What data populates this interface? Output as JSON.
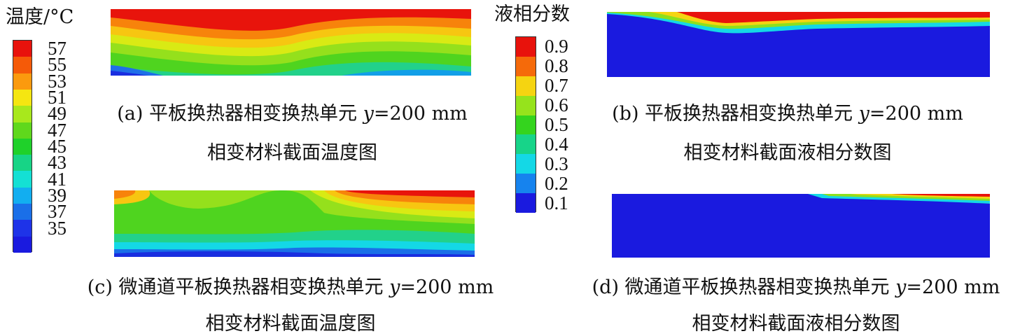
{
  "temperature_legend": {
    "title": "温度/°C",
    "ticks": [
      "57",
      "55",
      "53",
      "51",
      "49",
      "47",
      "45",
      "43",
      "41",
      "39",
      "37",
      "35"
    ],
    "colors": [
      "#e8120c",
      "#f55a08",
      "#fb9a0e",
      "#f5e611",
      "#a8e81c",
      "#5fd81c",
      "#1fd12a",
      "#17d486",
      "#14e0d4",
      "#12aef0",
      "#1a6fe8",
      "#1e33e8",
      "#1a1adf"
    ]
  },
  "fraction_legend": {
    "title": "液相分数",
    "ticks": [
      "0.9",
      "0.8",
      "0.7",
      "0.6",
      "0.5",
      "0.4",
      "0.3",
      "0.2",
      "0.1"
    ],
    "colors": [
      "#e8120c",
      "#f56a0a",
      "#f5d411",
      "#96e31c",
      "#34d41e",
      "#17d489",
      "#14d8e6",
      "#1683ee",
      "#1a1adf"
    ]
  },
  "captions": {
    "a": {
      "line1_prefix": "(a) 平板换热器相变换热单元 ",
      "var": "y",
      "line1_suffix": "=200 mm",
      "line2": "相变材料截面温度图"
    },
    "b": {
      "line1_prefix": "(b) 平板换热器相变换热单元 ",
      "var": "y",
      "line1_suffix": "=200 mm",
      "line2": "相变材料截面液相分数图"
    },
    "c": {
      "line1_prefix": "(c) 微通道平板换热器相变换热单元 ",
      "var": "y",
      "line1_suffix": "=200 mm",
      "line2": "相变材料截面温度图"
    },
    "d": {
      "line1_prefix": "(d) 微通道平板换热器相变换热单元 ",
      "var": "y",
      "line1_suffix": "=200 mm",
      "line2": "相变材料截面液相分数图"
    }
  }
}
